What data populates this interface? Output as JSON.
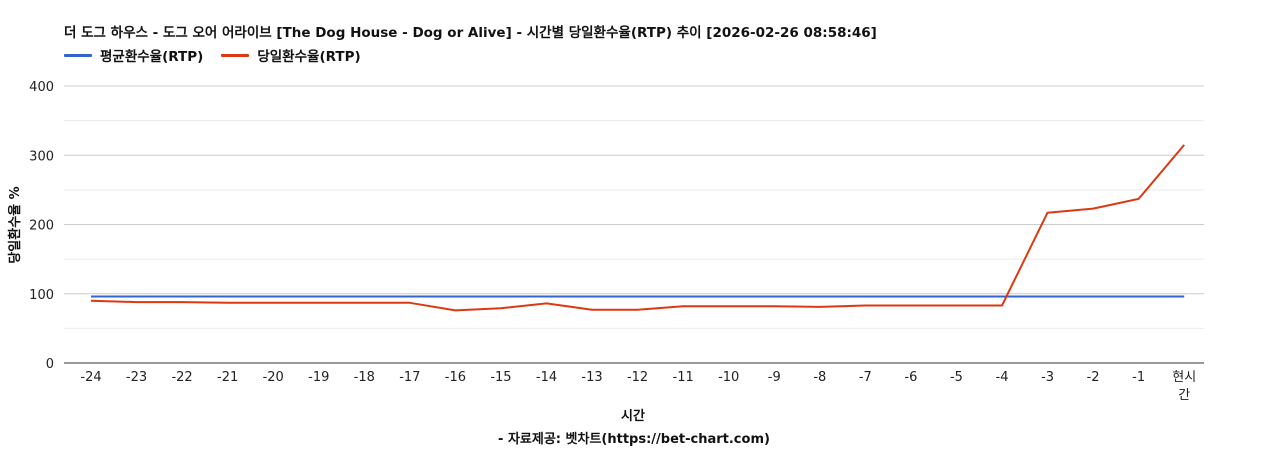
{
  "chart_data": {
    "type": "line",
    "title": "더 도그 하우스 - 도그 오어 어라이브 [The Dog House - Dog or Alive] - 시간별 당일환수율(RTP) 추이 [2026-02-26 08:58:46]",
    "xlabel": "시간",
    "ylabel": "당일환수율 %",
    "source": "- 자료제공: 벳차트(https://bet-chart.com)",
    "categories": [
      "-24",
      "-23",
      "-22",
      "-21",
      "-20",
      "-19",
      "-18",
      "-17",
      "-16",
      "-15",
      "-14",
      "-13",
      "-12",
      "-11",
      "-10",
      "-9",
      "-8",
      "-7",
      "-6",
      "-5",
      "-4",
      "-3",
      "-2",
      "-1",
      "현시간"
    ],
    "ylim": [
      0,
      400
    ],
    "yticks": [
      0,
      100,
      200,
      300,
      400
    ],
    "grid": true,
    "legend_position": "top-left",
    "series": [
      {
        "name": "평균환수율(RTP)",
        "color": "#3366cc",
        "values": [
          96,
          96,
          96,
          96,
          96,
          96,
          96,
          96,
          96,
          96,
          96,
          96,
          96,
          96,
          96,
          96,
          96,
          96,
          96,
          96,
          96,
          96,
          96,
          96,
          96
        ]
      },
      {
        "name": "당일환수율(RTP)",
        "color": "#dc3912",
        "values": [
          90,
          88,
          88,
          87,
          87,
          87,
          87,
          87,
          76,
          79,
          86,
          77,
          77,
          82,
          82,
          82,
          81,
          83,
          83,
          83,
          83,
          217,
          223,
          237,
          315
        ]
      }
    ]
  }
}
